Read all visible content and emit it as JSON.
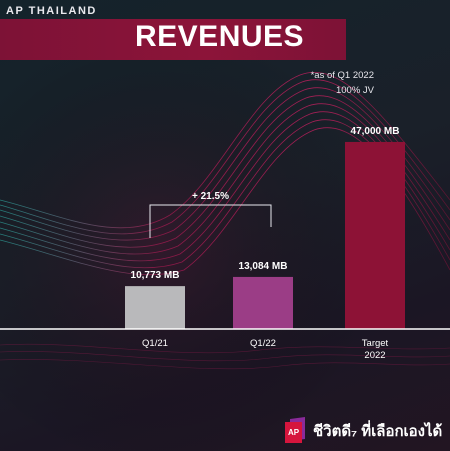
{
  "header": {
    "brand": "AP THAILAND",
    "title": "REVENUES"
  },
  "notes": {
    "line1": "*as of Q1 2022",
    "line2": "100% JV"
  },
  "footer": {
    "logo_text": "AP",
    "tagline": "ชีวิตดี₇ ที่เลือกเองได้"
  },
  "colors": {
    "title_band": "#8c1439",
    "bar_q121": "#b9b9bb",
    "bar_q122": "#9b3d86",
    "bar_target": "#8d1236"
  },
  "chart_data": {
    "type": "bar",
    "title": "REVENUES",
    "categories": [
      "Q1/21",
      "Q1/22",
      "Target 2022"
    ],
    "category_lines": [
      [
        "Q1/21"
      ],
      [
        "Q1/22"
      ],
      [
        "Target",
        "2022"
      ]
    ],
    "values": [
      10773,
      13084,
      47000
    ],
    "value_labels": [
      "10,773 MB",
      "13,084 MB",
      "47,000 MB"
    ],
    "unit": "MB",
    "growth_annotation": {
      "from": "Q1/21",
      "to": "Q1/22",
      "label": "+ 21.5%"
    },
    "ylim": [
      0,
      50000
    ],
    "grid": false,
    "legend": "none"
  }
}
